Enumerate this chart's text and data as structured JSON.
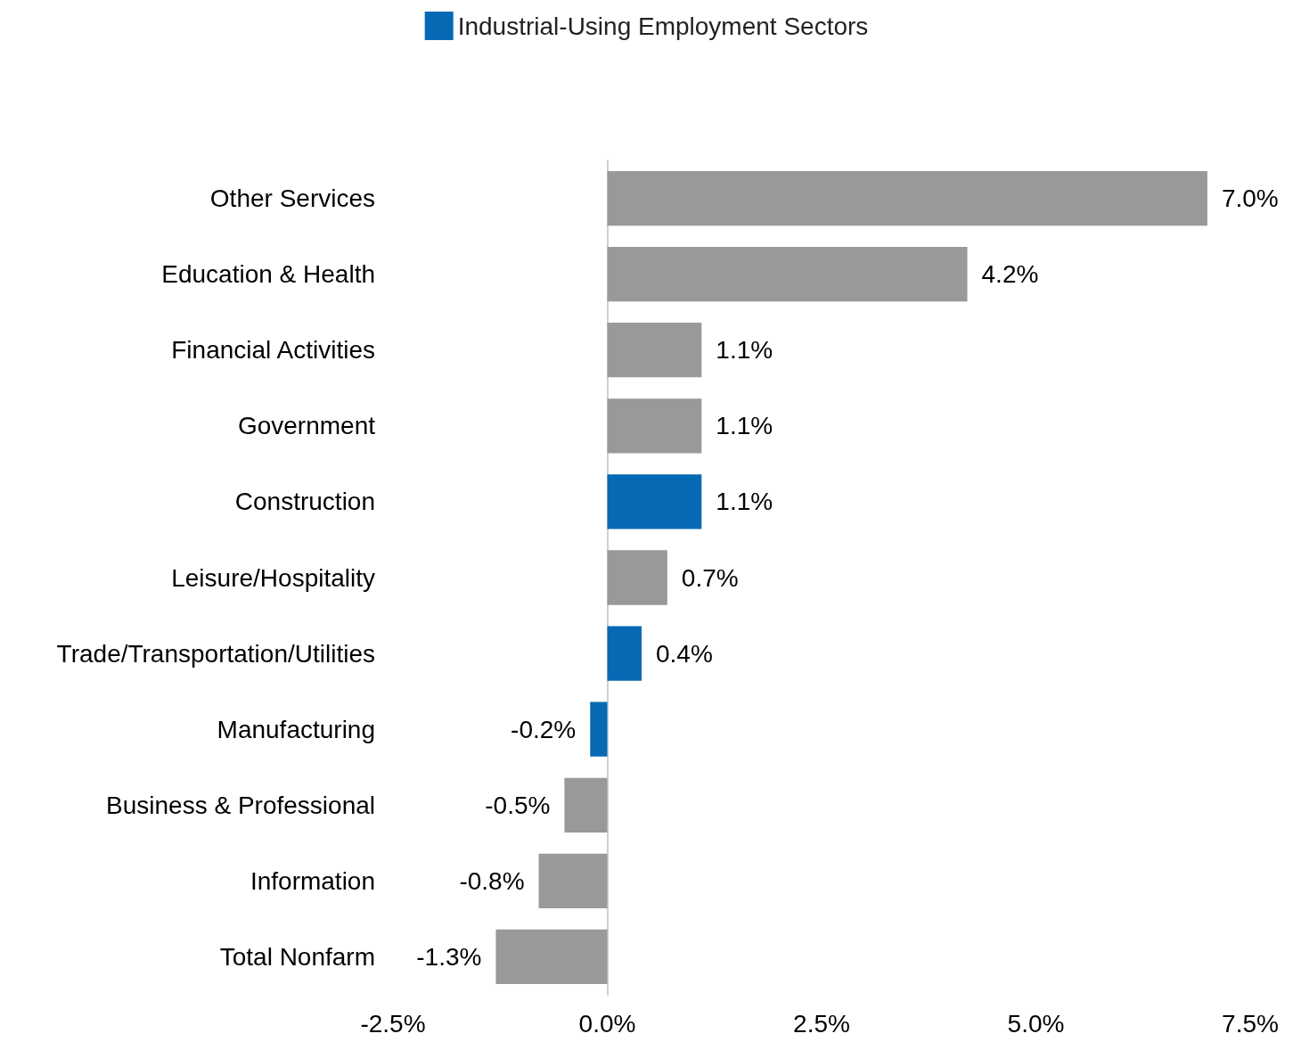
{
  "chart_data": {
    "type": "bar",
    "orientation": "horizontal",
    "stacked": true,
    "legend": "top",
    "categories": [
      "Other Services",
      "Education & Health",
      "Financial Activities",
      "Government",
      "Construction",
      "Leisure/Hospitality",
      "Trade/Transportation/Utilities",
      "Manufacturing",
      "Business & Professional",
      "Information",
      "Total Nonfarm"
    ],
    "series": [
      {
        "name": "Industrial-Using Employment Sectors",
        "color": "#0569b4",
        "values": [
          null,
          null,
          null,
          null,
          1.1,
          null,
          0.4,
          -0.2,
          null,
          null,
          null
        ],
        "value_labels": [
          null,
          null,
          null,
          null,
          "1.1%",
          null,
          "0.4%",
          "-0.2%",
          null,
          null,
          null
        ]
      },
      {
        "color": "#999999",
        "values": [
          7.0,
          4.2,
          1.1,
          1.1,
          null,
          0.7,
          null,
          null,
          -0.5,
          -0.8,
          -1.3
        ],
        "value_labels": [
          "7.0%",
          "4.2%",
          "1.1%",
          "1.1%",
          null,
          "0.7%",
          null,
          null,
          "-0.5%",
          "-0.8%",
          "-1.3%"
        ]
      }
    ],
    "xlim": [
      -2.5,
      7.5
    ],
    "xticks": [
      {
        "value": -2.5,
        "label": "-2.5%"
      },
      {
        "value": 0,
        "label": "0.0%"
      },
      {
        "value": 2.5,
        "label": "2.5%"
      },
      {
        "value": 5,
        "label": "5.0%"
      },
      {
        "value": 7.5,
        "label": "7.5%"
      }
    ]
  }
}
